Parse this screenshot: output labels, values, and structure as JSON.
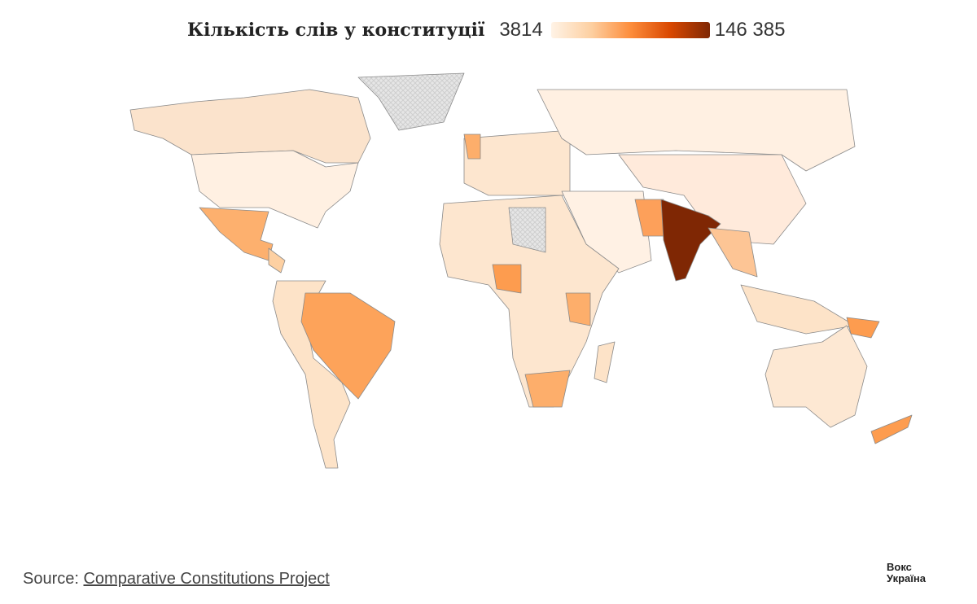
{
  "legend": {
    "title": "Кількість слів у конституції",
    "min_label": "3814",
    "max_label": "146 385",
    "min_value": 3814,
    "max_value": 146385,
    "colors": [
      "#fff3e6",
      "#fdd0a2",
      "#fd8d3c",
      "#d94801",
      "#7f2704"
    ],
    "no_data_color": "#e3e3e3"
  },
  "footer": {
    "source_prefix": "Source: ",
    "source_link": "Comparative Constitutions Project",
    "logo_line1": "Вокс",
    "logo_line2": "Україна"
  }
}
